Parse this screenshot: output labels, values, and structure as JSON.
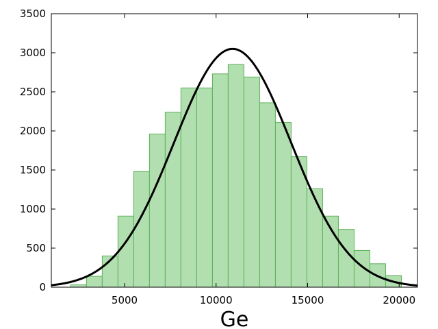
{
  "chart_data": {
    "type": "bar",
    "title": "",
    "xlabel": "Ge",
    "ylabel": "",
    "xlim": [
      1000,
      21000
    ],
    "ylim": [
      0,
      3500
    ],
    "xticks": [
      5000,
      10000,
      15000,
      20000
    ],
    "yticks": [
      0,
      500,
      1000,
      1500,
      2000,
      2500,
      3000,
      3500
    ],
    "xtick_labels": [
      "5000",
      "10000",
      "15000",
      "20000"
    ],
    "ytick_labels": [
      "0",
      "500",
      "1000",
      "1500",
      "2000",
      "2500",
      "3000",
      "3500"
    ],
    "grid": false,
    "histogram": {
      "bin_width": 860,
      "bin_starts": [
        2060,
        2920,
        3780,
        4640,
        5500,
        6360,
        7220,
        8080,
        8940,
        9800,
        10660,
        11520,
        12380,
        13240,
        14100,
        14960,
        15820,
        16680,
        17540,
        18400,
        19260
      ],
      "counts": [
        30,
        140,
        400,
        910,
        1480,
        1960,
        2240,
        2550,
        2550,
        2730,
        2850,
        2690,
        2360,
        2110,
        1670,
        1260,
        910,
        740,
        470,
        300,
        150
      ],
      "color": "#b2dfb0",
      "edge_color": "#5cb05a"
    },
    "fit_curve": {
      "type": "gaussian",
      "mean": 10900,
      "sigma": 3200,
      "peak": 3050,
      "color": "#000000"
    }
  }
}
